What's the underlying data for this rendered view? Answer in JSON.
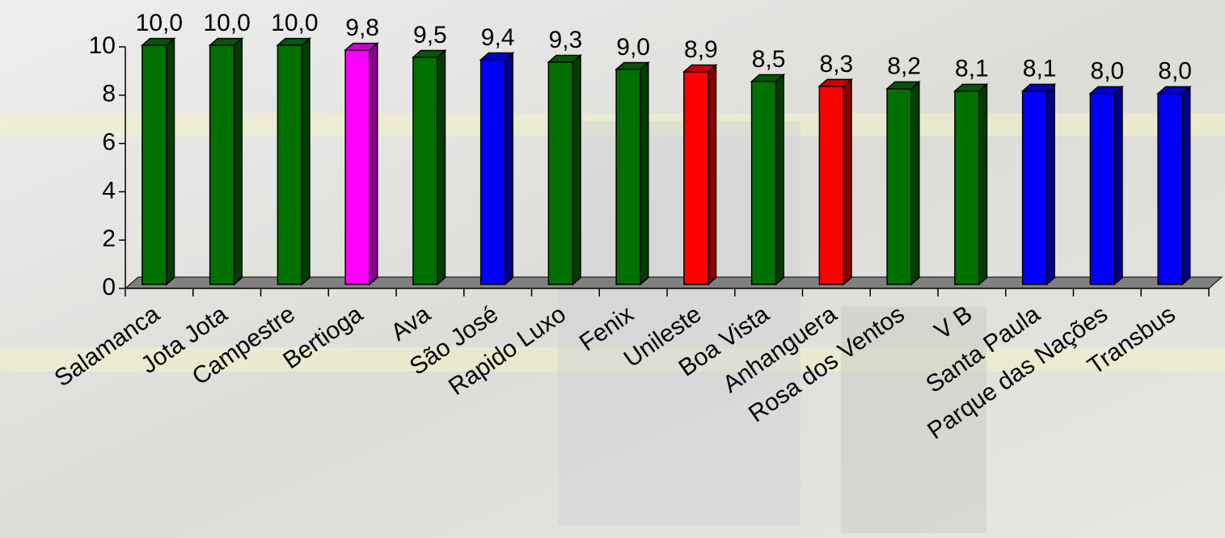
{
  "chart_data": {
    "type": "bar3d",
    "categories": [
      "Salamanca",
      "Jota Jota",
      "Campestre",
      "Bertioga",
      "Ava",
      "São José",
      "Rapido Luxo",
      "Fenix",
      "Unileste",
      "Boa Vista",
      "Anhanguera",
      "Rosa dos Ventos",
      "V B",
      "Santa Paula",
      "Parque das Nações",
      "Transbus"
    ],
    "values": [
      10.0,
      10.0,
      10.0,
      9.8,
      9.5,
      9.4,
      9.3,
      9.0,
      8.9,
      8.5,
      8.3,
      8.2,
      8.1,
      8.1,
      8.0,
      8.0
    ],
    "value_labels": [
      "10,0",
      "10,0",
      "10,0",
      "9,8",
      "9,5",
      "9,4",
      "9,3",
      "9,0",
      "8,9",
      "8,5",
      "8,3",
      "8,2",
      "8,1",
      "8,1",
      "8,0",
      "8,0"
    ],
    "colors": [
      "#007000",
      "#007000",
      "#007000",
      "#ff00ff",
      "#007000",
      "#0000ff",
      "#007000",
      "#007000",
      "#ff0000",
      "#007000",
      "#ff0000",
      "#007000",
      "#007000",
      "#0000ff",
      "#0000ff",
      "#0000ff"
    ],
    "ylim": [
      0,
      10
    ],
    "yticks": [
      0,
      2,
      4,
      6,
      8,
      10
    ]
  }
}
